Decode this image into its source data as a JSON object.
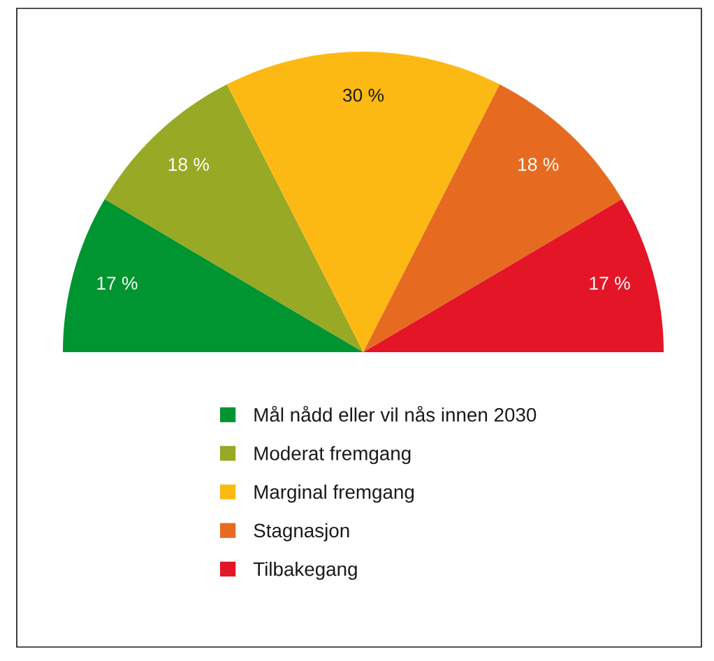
{
  "chart_data": {
    "type": "pie",
    "categories": [
      "Mål nådd eller vil nås innen 2030",
      "Moderat fremgang",
      "Marginal fremgang",
      "Stagnasjon",
      "Tilbakegang"
    ],
    "values": [
      17,
      18,
      30,
      18,
      17
    ],
    "value_labels": [
      "17 %",
      "18 %",
      "30 %",
      "18 %",
      "17 %"
    ],
    "colors": [
      "#009530",
      "#97a925",
      "#fdb913",
      "#e66b21",
      "#e31527"
    ],
    "legend": "bottom"
  }
}
